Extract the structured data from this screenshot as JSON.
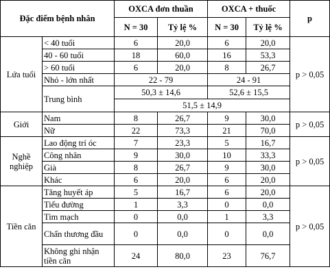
{
  "header": {
    "patient_features": "Đặc điểm bệnh nhân",
    "group1": "OXCA đơn thuần",
    "group2": "OXCA + thuốc",
    "p": "p",
    "n1": "N = 30",
    "rate1": "Tỷ lệ %",
    "n2": "N = 30",
    "rate2": "Tỷ lệ %"
  },
  "age": {
    "label": "Lứa tuổi",
    "p": "p > 0,05",
    "rows": [
      {
        "label": "< 40 tuổi",
        "n1": "6",
        "r1": "20,0",
        "n2": "6",
        "r2": "20,0"
      },
      {
        "label": "40 - 60 tuổi",
        "n1": "18",
        "r1": "60,0",
        "n2": "16",
        "r2": "53,3"
      },
      {
        "label": "> 60 tuổi",
        "n1": "6",
        "r1": "20,0",
        "n2": "8",
        "r2": "26,7"
      }
    ],
    "range_label": "Nhỏ - lớn nhất",
    "range1": "22 - 79",
    "range2": "24 - 91",
    "mean_label": "Trung bình",
    "mean1": "50,3 ± 14,6",
    "mean2": "52,6 ± 15,5",
    "mean_total": "51,5 ± 14,9"
  },
  "sex": {
    "label": "Giới",
    "p": "p > 0,05",
    "rows": [
      {
        "label": "Nam",
        "n1": "8",
        "r1": "26,7",
        "n2": "9",
        "r2": "30,0"
      },
      {
        "label": "Nữ",
        "n1": "22",
        "r1": "73,3",
        "n2": "21",
        "r2": "70,0"
      }
    ]
  },
  "job": {
    "label": "Nghề nghiệp",
    "p": "p > 0,05",
    "rows": [
      {
        "label": "Lao động trí óc",
        "n1": "7",
        "r1": "23,3",
        "n2": "5",
        "r2": "16,7"
      },
      {
        "label": "Công nhân",
        "n1": "9",
        "r1": "30,0",
        "n2": "10",
        "r2": "33,3"
      },
      {
        "label": "Già",
        "n1": "8",
        "r1": "26,7",
        "n2": "9",
        "r2": "30,0"
      },
      {
        "label": "Khác",
        "n1": "6",
        "r1": "20,0",
        "n2": "6",
        "r2": "20,0"
      }
    ]
  },
  "history": {
    "label": "Tiền căn",
    "p": "p > 0,05",
    "rows": [
      {
        "label": "Tăng huyết áp",
        "n1": "5",
        "r1": "16,7",
        "n2": "6",
        "r2": "20,0"
      },
      {
        "label": "Tiểu đường",
        "n1": "1",
        "r1": "3,3",
        "n2": "0",
        "r2": "0,0"
      },
      {
        "label": "Tim mạch",
        "n1": "0",
        "r1": "0,0",
        "n2": "1",
        "r2": "3,3"
      },
      {
        "label": "Chấn thương đầu",
        "n1": "0",
        "r1": "0,0",
        "n2": "0",
        "r2": "0,0"
      },
      {
        "label": "Không ghi nhận tiền căn",
        "n1": "24",
        "r1": "80,0",
        "n2": "23",
        "r2": "76,7"
      }
    ]
  }
}
